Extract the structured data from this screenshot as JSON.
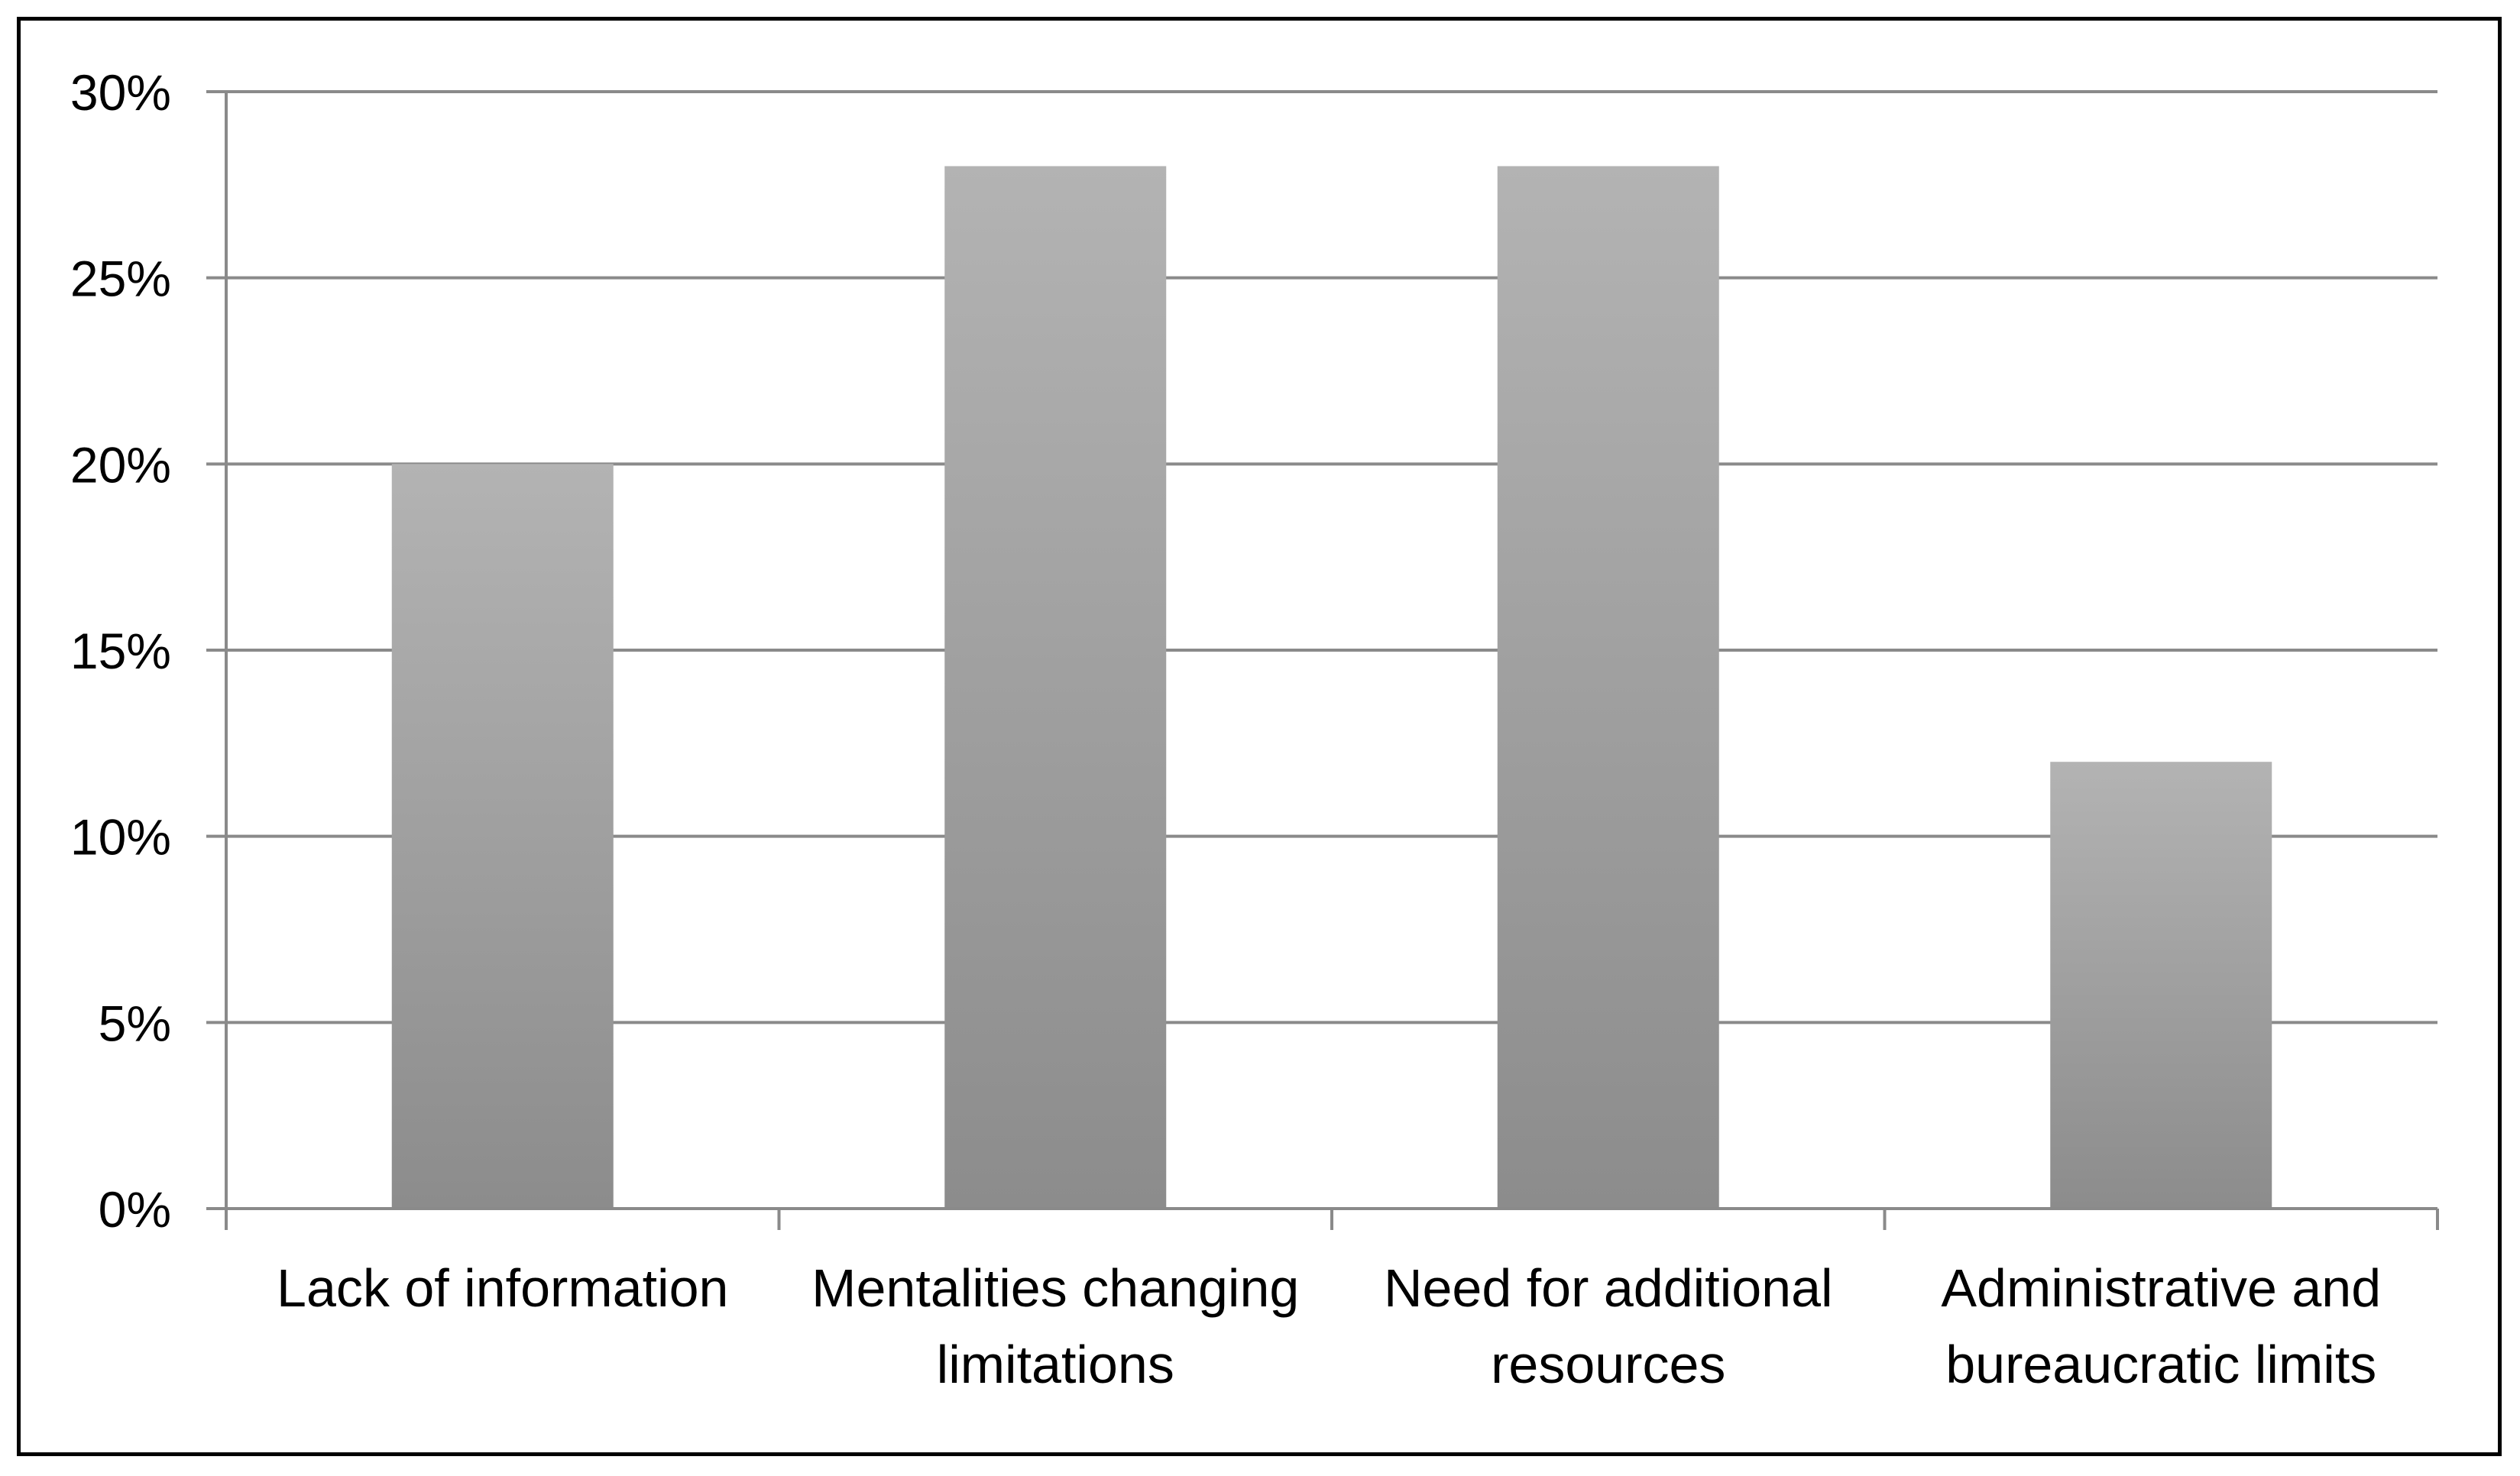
{
  "chart_data": {
    "type": "bar",
    "title": "",
    "xlabel": "",
    "ylabel": "",
    "categories": [
      [
        "Lack of information"
      ],
      [
        "Mentalities changing",
        "limitations"
      ],
      [
        "Need for additional",
        "resources"
      ],
      [
        "Administrative and",
        "bureaucratic limits"
      ]
    ],
    "values": [
      20,
      28,
      28,
      12
    ],
    "ylim": [
      0,
      30
    ],
    "yticks": [
      0,
      5,
      10,
      15,
      20,
      25,
      30
    ],
    "ytick_labels": [
      "0%",
      "5%",
      "10%",
      "15%",
      "20%",
      "25%",
      "30%"
    ],
    "grid": true,
    "legend": "none",
    "colors": {
      "bar_top": "#b3b3b3",
      "bar_bottom": "#8c8c8c",
      "grid": "#8a8a8a",
      "axis": "#8a8a8a"
    }
  }
}
